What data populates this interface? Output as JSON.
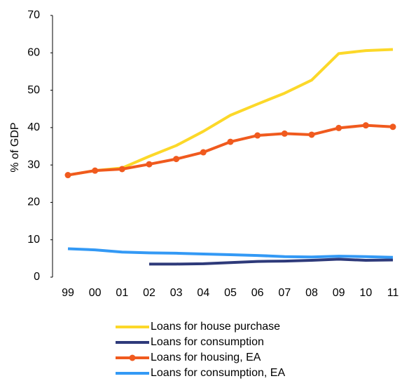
{
  "chart_data": {
    "type": "line",
    "y_label": "% of GDP",
    "categories": [
      "99",
      "00",
      "01",
      "02",
      "03",
      "04",
      "05",
      "06",
      "07",
      "08",
      "09",
      "10",
      "11"
    ],
    "ylim": [
      0,
      70
    ],
    "yticks": [
      0,
      10,
      20,
      30,
      40,
      50,
      60,
      70
    ],
    "grid": false,
    "legend": "bottom",
    "series": [
      {
        "name": "Loans for house purchase",
        "color": "#fcd829",
        "markers": false,
        "values": [
          27.3,
          28.5,
          29.2,
          32.3,
          35.2,
          39.0,
          43.3,
          46.3,
          49.2,
          52.7,
          59.8,
          60.6,
          60.9
        ]
      },
      {
        "name": "Loans for consumption",
        "color": "#2e3a7a",
        "markers": false,
        "values": [
          null,
          null,
          null,
          3.5,
          3.5,
          3.6,
          3.9,
          4.2,
          4.3,
          4.5,
          4.8,
          4.5,
          4.6
        ]
      },
      {
        "name": "Loans for housing, EA",
        "color": "#f05a1e",
        "markers": true,
        "values": [
          27.3,
          28.5,
          28.9,
          30.2,
          31.6,
          33.4,
          36.2,
          37.9,
          38.4,
          38.1,
          39.9,
          40.6,
          40.2
        ]
      },
      {
        "name": "Loans for consumption, EA",
        "color": "#3399f5",
        "markers": false,
        "values": [
          7.6,
          7.3,
          6.7,
          6.5,
          6.4,
          6.2,
          6.0,
          5.8,
          5.5,
          5.4,
          5.6,
          5.5,
          5.3
        ]
      }
    ]
  }
}
